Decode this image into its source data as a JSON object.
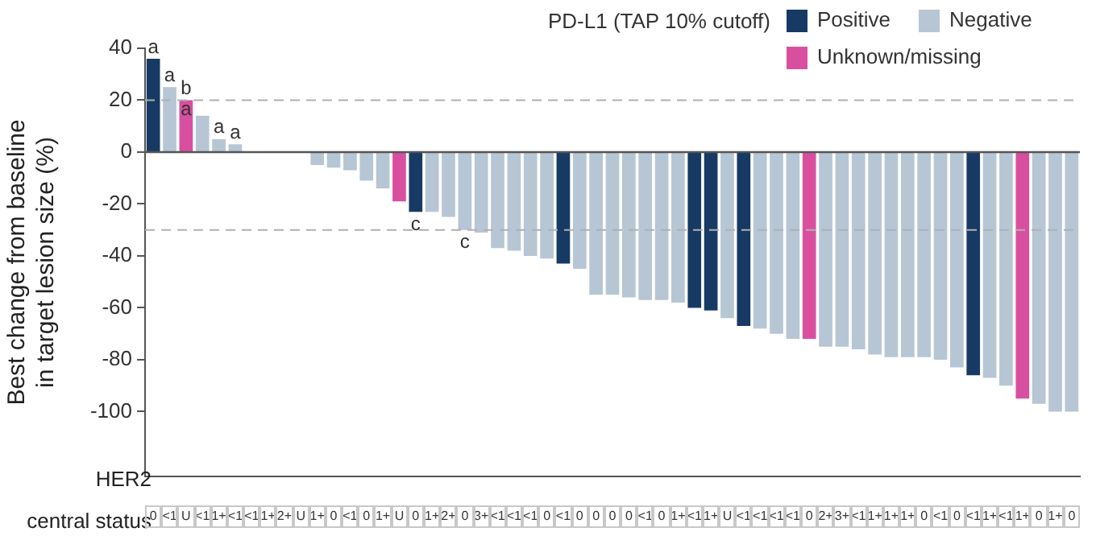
{
  "chart_data": {
    "type": "bar",
    "stacked": true,
    "xlabel": "HER2\ncentral status",
    "ylabel": "Best change from baseline\nin target lesion size (%)",
    "legend_title": "PD-L1 (TAP 10% cutoff)",
    "legend": "top right",
    "categories": [
      "0",
      "<1",
      "U",
      "<1",
      "1+",
      "<1",
      "<1",
      "1+",
      "2+",
      "U",
      "1+",
      "0",
      "<1",
      "0",
      "1+",
      "U",
      "0",
      "1+",
      "2+",
      "0",
      "3+",
      "<1",
      "<1",
      "<1",
      "0",
      "<1",
      "0",
      "0",
      "0",
      "0",
      "<1",
      "0",
      "1+",
      "<1",
      "1+",
      "U",
      "<1",
      "<1",
      "<1",
      "<1",
      "0",
      "2+",
      "3+",
      "<1",
      "1+",
      "1+",
      "1+",
      "0",
      "<1",
      "0",
      "<1",
      "1+",
      "<1",
      "1+",
      "0",
      "1+",
      "0"
    ],
    "series": [
      {
        "name": "Positive",
        "color": "#173a64",
        "values": [
          36,
          null,
          null,
          null,
          null,
          null,
          null,
          null,
          null,
          null,
          null,
          null,
          null,
          null,
          null,
          null,
          -23,
          null,
          null,
          null,
          null,
          null,
          null,
          null,
          null,
          -43,
          null,
          null,
          null,
          null,
          null,
          null,
          null,
          -60,
          -61,
          null,
          -67,
          null,
          null,
          null,
          null,
          null,
          null,
          null,
          null,
          null,
          null,
          null,
          null,
          null,
          -86,
          null,
          null,
          null,
          null,
          null,
          null
        ]
      },
      {
        "name": "Negative",
        "color": "#b7c6d4",
        "values": [
          null,
          25,
          null,
          14,
          5,
          3,
          0,
          0,
          0,
          0,
          -5,
          -6,
          -7,
          -11,
          -14,
          null,
          null,
          -23,
          -25,
          -30,
          -31,
          -37,
          -38,
          -40,
          -41,
          null,
          -45,
          -55,
          -55,
          -56,
          -57,
          -57,
          -58,
          null,
          null,
          -64,
          null,
          -68,
          -70,
          -72,
          null,
          -75,
          -75,
          -76,
          -78,
          -79,
          -79,
          -79,
          -80,
          -83,
          null,
          -87,
          -90,
          null,
          -97,
          -100,
          -100
        ]
      },
      {
        "name": "Unknown/missing",
        "color": "#d94fa0",
        "values": [
          null,
          null,
          20,
          null,
          null,
          null,
          null,
          null,
          null,
          null,
          null,
          null,
          null,
          null,
          null,
          -19,
          null,
          null,
          null,
          null,
          null,
          null,
          null,
          null,
          null,
          null,
          null,
          null,
          null,
          null,
          null,
          null,
          null,
          null,
          null,
          null,
          null,
          null,
          null,
          null,
          -72,
          null,
          null,
          null,
          null,
          null,
          null,
          null,
          null,
          null,
          null,
          null,
          null,
          -95,
          null,
          null,
          null
        ]
      }
    ],
    "value_labels": [
      "a",
      "a",
      "b\na",
      null,
      "a",
      "a",
      null,
      null,
      null,
      null,
      null,
      null,
      null,
      null,
      null,
      null,
      "c",
      null,
      null,
      "c",
      null,
      null,
      null,
      null,
      null,
      null,
      null,
      null,
      null,
      null,
      null,
      null,
      null,
      null,
      null,
      null,
      null,
      null,
      null,
      null,
      null,
      null,
      null,
      null,
      null,
      null,
      null,
      null,
      null,
      null,
      null,
      null,
      null,
      null,
      null,
      null,
      null
    ],
    "ylim": [
      -125,
      40
    ],
    "yticks": [
      40,
      20,
      0,
      -20,
      -40,
      -60,
      -80,
      -100
    ],
    "ref_lines": [
      {
        "axis": "y",
        "value": 20,
        "color": "#b0b0b0",
        "line_style": "dashed"
      },
      {
        "axis": "y",
        "value": -30,
        "color": "#b0b0b0",
        "line_style": "dashed"
      }
    ]
  }
}
